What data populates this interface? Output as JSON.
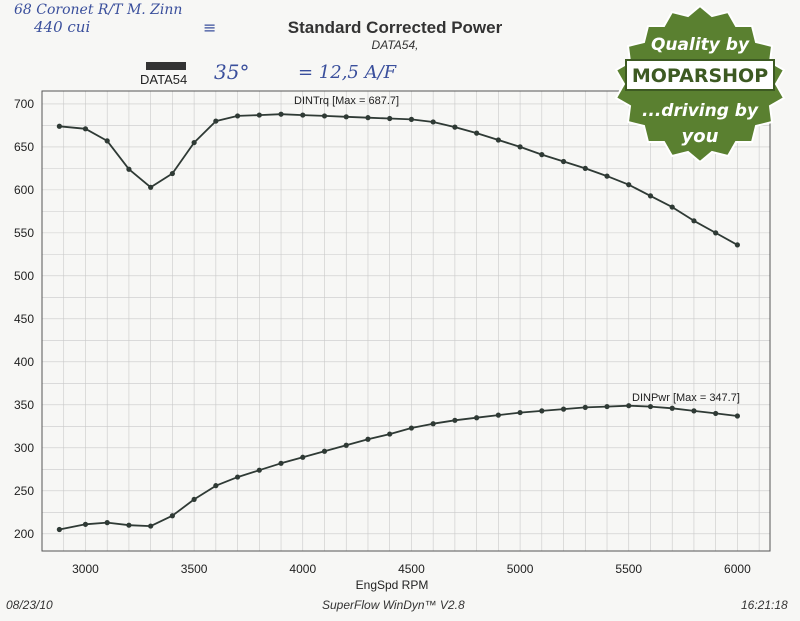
{
  "handwriting": {
    "line1": "68 Coronet R/T  M. Zinn",
    "line2": "440 cui",
    "timing": "35°",
    "ratio": "= 12,5 A/F"
  },
  "header": {
    "title": "Standard Corrected Power",
    "subtitle": "DATA54,",
    "legend_label": "DATA54"
  },
  "badge": {
    "line1": "Quality by",
    "line2": "MOPARSHOP",
    "line3": "...driving by",
    "line4": "you",
    "color": "#5a8030"
  },
  "footer": {
    "date": "08/23/10",
    "software": "SuperFlow WinDyn™ V2.8",
    "time": "16:21:18"
  },
  "chart_data": {
    "type": "line",
    "xlabel": "EngSpd RPM",
    "ylabel": "",
    "xlim": [
      2800,
      6150
    ],
    "ylim": [
      180,
      715
    ],
    "x_ticks": [
      3000,
      3500,
      4000,
      4500,
      5000,
      5500,
      6000
    ],
    "y_ticks": [
      200,
      250,
      300,
      350,
      400,
      450,
      500,
      550,
      600,
      650,
      700
    ],
    "grid": true,
    "line_color": "#2f3a35",
    "x": [
      2880,
      3000,
      3100,
      3200,
      3300,
      3400,
      3500,
      3600,
      3700,
      3800,
      3900,
      4000,
      4100,
      4200,
      4300,
      4400,
      4500,
      4600,
      4700,
      4800,
      4900,
      5000,
      5100,
      5200,
      5300,
      5400,
      5500,
      5600,
      5700,
      5800,
      5900,
      6000
    ],
    "series": [
      {
        "name": "DINTrq",
        "label": "DINTrq [Max = 687.7]",
        "values": [
          674,
          671,
          657,
          624,
          603,
          619,
          655,
          680,
          686,
          687,
          688,
          687,
          686,
          685,
          684,
          683,
          682,
          679,
          673,
          666,
          658,
          650,
          641,
          633,
          625,
          616,
          606,
          593,
          580,
          564,
          550,
          536
        ]
      },
      {
        "name": "DINPwr",
        "label": "DINPwr [Max = 347.7]",
        "values": [
          205,
          211,
          213,
          210,
          209,
          221,
          240,
          256,
          266,
          274,
          282,
          289,
          296,
          303,
          310,
          316,
          323,
          328,
          332,
          335,
          338,
          341,
          343,
          345,
          347,
          348,
          349,
          348,
          346,
          343,
          340,
          337
        ]
      }
    ]
  }
}
